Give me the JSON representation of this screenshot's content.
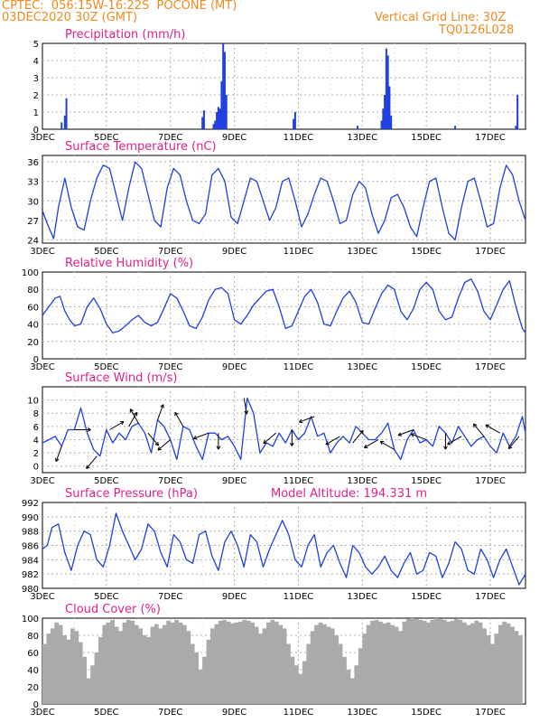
{
  "header": {
    "line1": "CPTEC:  056:15W-16:22S  POCONE (MT)",
    "line2": "03DEC2020 30Z (GMT)",
    "right1": "Vertical Grid Line: 30Z",
    "right2": "TQ0126L028"
  },
  "colors": {
    "header": "#f08a1e",
    "title": "#e0218a",
    "series": "#1f3fe0",
    "cloud": "#aaaaaa",
    "grid": "#b0b0b0"
  },
  "x_ticks": [
    "3DEC",
    "5DEC",
    "7DEC",
    "9DEC",
    "11DEC",
    "13DEC",
    "15DEC",
    "17DEC"
  ],
  "chart_data": [
    {
      "type": "bar",
      "title": "Precipitation (mm/h)",
      "ylim": [
        0,
        5
      ],
      "yticks": [
        0,
        1,
        2,
        3,
        4,
        5
      ],
      "grid": true,
      "bars": [
        {
          "x": 3.6,
          "value": 0.4
        },
        {
          "x": 3.7,
          "value": 0.8
        },
        {
          "x": 3.75,
          "value": 1.8
        },
        {
          "x": 8.0,
          "value": 0.7
        },
        {
          "x": 8.05,
          "value": 1.1
        },
        {
          "x": 8.35,
          "value": 0.3
        },
        {
          "x": 8.4,
          "value": 0.5
        },
        {
          "x": 8.45,
          "value": 1.0
        },
        {
          "x": 8.5,
          "value": 1.3
        },
        {
          "x": 8.55,
          "value": 1.2
        },
        {
          "x": 8.6,
          "value": 2.8
        },
        {
          "x": 8.65,
          "value": 5.0
        },
        {
          "x": 8.7,
          "value": 4.5
        },
        {
          "x": 8.75,
          "value": 2.0
        },
        {
          "x": 10.85,
          "value": 0.6
        },
        {
          "x": 10.9,
          "value": 1.0
        },
        {
          "x": 12.85,
          "value": 0.2
        },
        {
          "x": 13.6,
          "value": 0.5
        },
        {
          "x": 13.65,
          "value": 1.2
        },
        {
          "x": 13.7,
          "value": 2.0
        },
        {
          "x": 13.75,
          "value": 4.7
        },
        {
          "x": 13.8,
          "value": 4.3
        },
        {
          "x": 13.85,
          "value": 2.5
        },
        {
          "x": 13.9,
          "value": 0.8
        },
        {
          "x": 15.9,
          "value": 0.2
        },
        {
          "x": 17.8,
          "value": 0.2
        },
        {
          "x": 17.85,
          "value": 2.0
        }
      ]
    },
    {
      "type": "line",
      "title": "Surface Temperature (nC)",
      "ylim": [
        23.5,
        37
      ],
      "yticks": [
        24,
        27,
        30,
        33,
        36
      ],
      "grid": true,
      "x": [
        3.0,
        3.15,
        3.35,
        3.5,
        3.7,
        3.9,
        4.1,
        4.3,
        4.5,
        4.7,
        4.9,
        5.1,
        5.3,
        5.5,
        5.7,
        5.9,
        6.1,
        6.3,
        6.5,
        6.7,
        6.9,
        7.1,
        7.3,
        7.5,
        7.7,
        7.9,
        8.1,
        8.3,
        8.5,
        8.7,
        8.9,
        9.1,
        9.3,
        9.5,
        9.7,
        9.9,
        10.1,
        10.3,
        10.5,
        10.7,
        10.9,
        11.1,
        11.3,
        11.5,
        11.7,
        11.9,
        12.1,
        12.3,
        12.5,
        12.7,
        12.9,
        13.1,
        13.3,
        13.5,
        13.7,
        13.9,
        14.1,
        14.3,
        14.5,
        14.7,
        14.9,
        15.1,
        15.3,
        15.5,
        15.7,
        15.9,
        16.1,
        16.3,
        16.5,
        16.7,
        16.9,
        17.1,
        17.3,
        17.5,
        17.7,
        17.9,
        18.1
      ],
      "series": [
        {
          "values": [
            28.5,
            26.5,
            24.2,
            29,
            33.5,
            29,
            26,
            25.5,
            30,
            33.5,
            35.5,
            35,
            31,
            27,
            32,
            36,
            35,
            31,
            27,
            26,
            32,
            35,
            34,
            30,
            27,
            26.5,
            28,
            34,
            35,
            33,
            27.5,
            26.5,
            30,
            33.5,
            33,
            30,
            27,
            29,
            33,
            33.5,
            30,
            26,
            28,
            31,
            33.5,
            33,
            30,
            26.5,
            27,
            31,
            33,
            32,
            28,
            25,
            27,
            30.5,
            31,
            29,
            26,
            24.5,
            29,
            33,
            33.5,
            29,
            25,
            24,
            29,
            33,
            33.5,
            30,
            26,
            26.5,
            32,
            35.5,
            34,
            30,
            27
          ]
        }
      ]
    },
    {
      "type": "line",
      "title": "Relative Humidity (%)",
      "ylim": [
        0,
        100
      ],
      "yticks": [
        0,
        20,
        40,
        60,
        80,
        100
      ],
      "grid": true,
      "x": [
        3.0,
        3.2,
        3.4,
        3.55,
        3.7,
        3.85,
        4.0,
        4.2,
        4.4,
        4.6,
        4.8,
        5.0,
        5.2,
        5.4,
        5.6,
        5.8,
        6.0,
        6.2,
        6.4,
        6.6,
        6.8,
        7.0,
        7.2,
        7.4,
        7.6,
        7.8,
        8.0,
        8.2,
        8.4,
        8.6,
        8.8,
        9.0,
        9.2,
        9.4,
        9.6,
        9.8,
        10.0,
        10.2,
        10.4,
        10.6,
        10.8,
        11.0,
        11.2,
        11.4,
        11.6,
        11.8,
        12.0,
        12.2,
        12.4,
        12.6,
        12.8,
        13.0,
        13.2,
        13.4,
        13.6,
        13.8,
        14.0,
        14.2,
        14.4,
        14.6,
        14.8,
        15.0,
        15.2,
        15.4,
        15.6,
        15.8,
        16.0,
        16.2,
        16.4,
        16.6,
        16.8,
        17.0,
        17.2,
        17.4,
        17.6,
        17.8,
        18.0,
        18.1
      ],
      "series": [
        {
          "values": [
            50,
            60,
            70,
            72,
            55,
            45,
            38,
            40,
            60,
            70,
            58,
            40,
            30,
            32,
            38,
            45,
            50,
            42,
            38,
            42,
            58,
            75,
            70,
            55,
            38,
            35,
            48,
            68,
            80,
            82,
            75,
            45,
            40,
            50,
            62,
            70,
            78,
            80,
            60,
            35,
            38,
            55,
            72,
            80,
            65,
            40,
            38,
            55,
            70,
            78,
            65,
            42,
            40,
            58,
            75,
            85,
            80,
            55,
            45,
            58,
            80,
            88,
            80,
            55,
            45,
            48,
            70,
            88,
            92,
            78,
            55,
            45,
            62,
            80,
            90,
            60,
            35,
            30
          ]
        }
      ]
    },
    {
      "type": "line",
      "title": "Surface Wind (m/s)",
      "ylim": [
        -1,
        12
      ],
      "yticks": [
        0,
        2,
        4,
        6,
        8,
        10
      ],
      "grid": true,
      "x": [
        3.0,
        3.2,
        3.4,
        3.6,
        3.8,
        4.0,
        4.2,
        4.4,
        4.6,
        4.8,
        5.0,
        5.2,
        5.4,
        5.6,
        5.8,
        6.0,
        6.2,
        6.4,
        6.6,
        6.8,
        7.0,
        7.2,
        7.4,
        7.6,
        7.8,
        8.0,
        8.2,
        8.4,
        8.6,
        8.8,
        9.0,
        9.2,
        9.4,
        9.6,
        9.8,
        10.0,
        10.2,
        10.4,
        10.6,
        10.8,
        11.0,
        11.2,
        11.4,
        11.6,
        11.8,
        12.0,
        12.2,
        12.4,
        12.6,
        12.8,
        13.0,
        13.2,
        13.4,
        13.6,
        13.8,
        14.0,
        14.2,
        14.4,
        14.6,
        14.8,
        15.0,
        15.2,
        15.4,
        15.6,
        15.8,
        16.0,
        16.2,
        16.4,
        16.6,
        16.8,
        17.0,
        17.2,
        17.4,
        17.6,
        17.8,
        18.0,
        18.1
      ],
      "series": [
        {
          "values": [
            3.5,
            4,
            4.5,
            3,
            5.5,
            5.5,
            8.8,
            5,
            2.5,
            1.5,
            5.5,
            3.5,
            5,
            4,
            6,
            6.5,
            5,
            2,
            7,
            6,
            4,
            1,
            6,
            5.5,
            3,
            1,
            5,
            5,
            4,
            4.5,
            3,
            1,
            10.3,
            8,
            2,
            3.5,
            3,
            5,
            3.5,
            5.5,
            4,
            5,
            7.5,
            4.5,
            5,
            2,
            3.5,
            4.5,
            3.5,
            6,
            5,
            4,
            4,
            5,
            6.5,
            2.5,
            1,
            4,
            5.5,
            3.5,
            4,
            3,
            6,
            5,
            3.5,
            6,
            4.5,
            3,
            4,
            4.5,
            3,
            2,
            5,
            3,
            4.5,
            7.5,
            5
          ]
        }
      ],
      "arrows": [
        {
          "x": 3.6,
          "dir_deg": 200
        },
        {
          "x": 4.0,
          "dir_deg": 90
        },
        {
          "x": 4.7,
          "dir_deg": 220
        },
        {
          "x": 5.1,
          "dir_deg": 60
        },
        {
          "x": 5.7,
          "dir_deg": 30
        },
        {
          "x": 6.0,
          "dir_deg": 330
        },
        {
          "x": 6.3,
          "dir_deg": 140
        },
        {
          "x": 6.6,
          "dir_deg": 20
        },
        {
          "x": 7.0,
          "dir_deg": 230
        },
        {
          "x": 7.4,
          "dir_deg": 330
        },
        {
          "x": 8.2,
          "dir_deg": 250
        },
        {
          "x": 8.5,
          "dir_deg": 180
        },
        {
          "x": 9.3,
          "dir_deg": 170
        },
        {
          "x": 10.3,
          "dir_deg": 230
        },
        {
          "x": 10.8,
          "dir_deg": 180
        },
        {
          "x": 11.5,
          "dir_deg": 250
        },
        {
          "x": 12.3,
          "dir_deg": 240
        },
        {
          "x": 12.7,
          "dir_deg": 40
        },
        {
          "x": 13.5,
          "dir_deg": 240
        },
        {
          "x": 14.0,
          "dir_deg": 300
        },
        {
          "x": 14.6,
          "dir_deg": 250
        },
        {
          "x": 15.0,
          "dir_deg": 290
        },
        {
          "x": 15.6,
          "dir_deg": 180
        },
        {
          "x": 16.1,
          "dir_deg": 240
        },
        {
          "x": 16.8,
          "dir_deg": 320
        },
        {
          "x": 17.3,
          "dir_deg": 300
        },
        {
          "x": 17.9,
          "dir_deg": 220
        }
      ]
    },
    {
      "type": "line",
      "title": "Surface Pressure (hPa)",
      "annotation": "Model Altitude: 194.331  m",
      "ylim": [
        980,
        992
      ],
      "yticks": [
        980,
        982,
        984,
        986,
        988,
        990,
        992
      ],
      "grid": true,
      "x": [
        3.0,
        3.15,
        3.3,
        3.5,
        3.7,
        3.9,
        4.1,
        4.3,
        4.5,
        4.7,
        4.9,
        5.1,
        5.3,
        5.5,
        5.7,
        5.9,
        6.1,
        6.3,
        6.5,
        6.7,
        6.9,
        7.1,
        7.3,
        7.5,
        7.7,
        7.9,
        8.1,
        8.3,
        8.5,
        8.7,
        8.9,
        9.1,
        9.3,
        9.5,
        9.7,
        9.9,
        10.1,
        10.3,
        10.5,
        10.7,
        10.9,
        11.1,
        11.3,
        11.5,
        11.7,
        11.9,
        12.1,
        12.3,
        12.5,
        12.7,
        12.9,
        13.1,
        13.3,
        13.5,
        13.7,
        13.9,
        14.1,
        14.3,
        14.5,
        14.7,
        14.9,
        15.1,
        15.3,
        15.5,
        15.7,
        15.9,
        16.1,
        16.3,
        16.5,
        16.7,
        16.9,
        17.1,
        17.3,
        17.5,
        17.7,
        17.9,
        18.1
      ],
      "series": [
        {
          "values": [
            985.5,
            986,
            988.5,
            989,
            985,
            982.5,
            986,
            988,
            987.5,
            984,
            983,
            986,
            990.5,
            988,
            986,
            984,
            985.5,
            989,
            988,
            985,
            983,
            987.5,
            986.5,
            984,
            983.5,
            987.5,
            988,
            984.5,
            982.5,
            986.5,
            988,
            986,
            983,
            987.5,
            986.5,
            983,
            985.5,
            987.5,
            989.5,
            987.5,
            984,
            983,
            986,
            987.5,
            983,
            985,
            986,
            983.5,
            981.5,
            986,
            985,
            983,
            982,
            983,
            984.5,
            982.5,
            981.5,
            983.5,
            985,
            982,
            982.5,
            985,
            984.5,
            981.5,
            983.5,
            986.5,
            985.5,
            982.5,
            982,
            985.5,
            984,
            981.5,
            984,
            985.5,
            983,
            980.5,
            982
          ]
        }
      ]
    },
    {
      "type": "bar",
      "title": "Cloud Cover (%)",
      "ylim": [
        0,
        100
      ],
      "yticks": [
        0,
        20,
        40,
        60,
        80,
        100
      ],
      "grid": true,
      "x_start": 3.0,
      "x_step": 0.125,
      "values": [
        70,
        82,
        88,
        95,
        92,
        80,
        75,
        88,
        85,
        72,
        55,
        30,
        45,
        60,
        78,
        92,
        95,
        98,
        90,
        85,
        95,
        98,
        97,
        92,
        88,
        80,
        78,
        90,
        93,
        88,
        92,
        97,
        95,
        98,
        95,
        92,
        85,
        70,
        60,
        40,
        55,
        75,
        88,
        93,
        97,
        98,
        96,
        94,
        95,
        96,
        98,
        97,
        95,
        90,
        82,
        88,
        95,
        98,
        96,
        92,
        88,
        70,
        55,
        45,
        35,
        50,
        70,
        85,
        92,
        95,
        93,
        90,
        88,
        80,
        70,
        55,
        40,
        30,
        45,
        65,
        82,
        92,
        97,
        98,
        96,
        94,
        95,
        92,
        90,
        85,
        96,
        99,
        100,
        99,
        98,
        97,
        95,
        98,
        100,
        99,
        98,
        96,
        97,
        99,
        98,
        95,
        92,
        94,
        97,
        95,
        88,
        80,
        70,
        82,
        92,
        96,
        94,
        90,
        85,
        80
      ]
    }
  ]
}
